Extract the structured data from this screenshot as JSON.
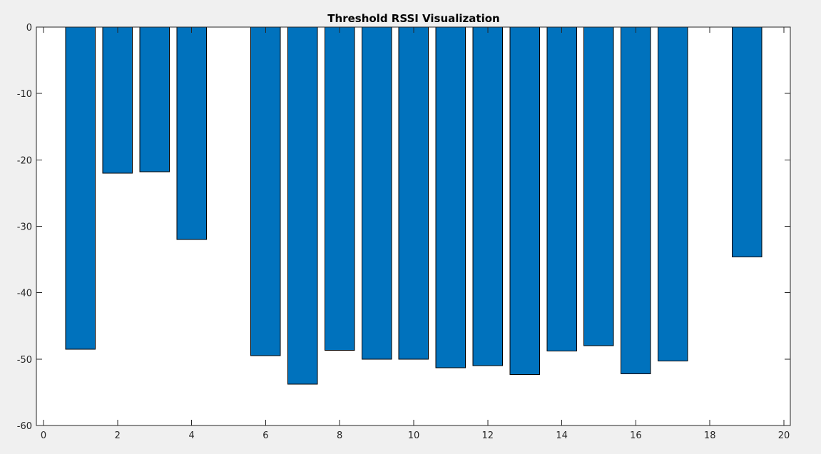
{
  "chart_data": {
    "type": "bar",
    "title": "Threshold RSSI Visualization",
    "xlabel": "",
    "ylabel": "",
    "x": [
      1,
      2,
      3,
      4,
      6,
      7,
      8,
      9,
      10,
      11,
      12,
      13,
      14,
      15,
      16,
      17,
      19
    ],
    "values": [
      -48.5,
      -22,
      -21.8,
      -32,
      -49.5,
      -53.8,
      -48.7,
      -50,
      -50,
      -51.3,
      -51,
      -52.3,
      -48.8,
      -48,
      -52.2,
      -50.3,
      -34.6
    ],
    "xlim": [
      0,
      20
    ],
    "ylim": [
      -60,
      0
    ],
    "xticks": [
      "0",
      "2",
      "4",
      "6",
      "8",
      "10",
      "12",
      "14",
      "16",
      "18",
      "20"
    ],
    "yticks": [
      "0",
      "-10",
      "-20",
      "-30",
      "-40",
      "-50",
      "-60"
    ],
    "bar_color": "#0072BD",
    "grid": false,
    "legend": "none"
  }
}
